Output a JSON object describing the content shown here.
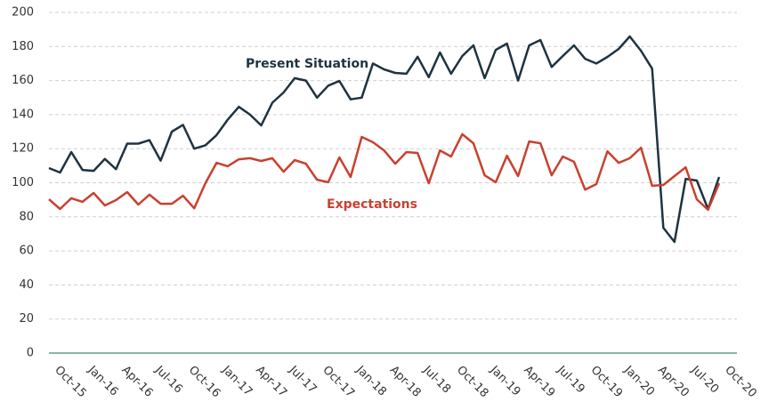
{
  "chart_data": {
    "type": "line",
    "categories": [
      null,
      "Oct-15",
      null,
      null,
      "Jan-16",
      null,
      null,
      "Apr-16",
      null,
      null,
      "Jul-16",
      null,
      null,
      "Oct-16",
      null,
      null,
      "Jan-17",
      null,
      null,
      "Apr-17",
      null,
      null,
      "Jul-17",
      null,
      null,
      "Oct-17",
      null,
      null,
      "Jan-18",
      null,
      null,
      "Apr-18",
      null,
      null,
      "Jul-18",
      null,
      null,
      "Oct-18",
      null,
      null,
      "Jan-19",
      null,
      null,
      "Apr-19",
      null,
      null,
      "Jul-19",
      null,
      null,
      "Oct-19",
      null,
      null,
      "Jan-20",
      null,
      null,
      "Apr-20",
      null,
      null,
      "Jul-20",
      null,
      null,
      "Oct-20"
    ],
    "series": [
      {
        "name": "Present Situation",
        "color": "#1e3340",
        "values": [
          108.6,
          106,
          118,
          107.5,
          107,
          114,
          108,
          123,
          123,
          125,
          113,
          130,
          134,
          120,
          122,
          128,
          137,
          144.6,
          140,
          133.7,
          147,
          153,
          161.4,
          160,
          150,
          157,
          159.8,
          149,
          150,
          170,
          166.6,
          164.5,
          164,
          174,
          162,
          176.5,
          164,
          174.4,
          180.7,
          161.4,
          178,
          181.7,
          160,
          180.7,
          183.8,
          168,
          174.4,
          180.7,
          172.8,
          170,
          173.9,
          178.6,
          185.9,
          177.5,
          167,
          73.6,
          65.3,
          102.3,
          101.3,
          84.6,
          103.4,
          null
        ]
      },
      {
        "name": "Expectations",
        "color": "#c8412f",
        "values": [
          90.3,
          84.6,
          90.9,
          88.8,
          94,
          86.7,
          89.8,
          94.5,
          87.2,
          93,
          87.7,
          87.7,
          92.4,
          85,
          99.7,
          111.7,
          109.7,
          113.8,
          114.4,
          112.8,
          114.4,
          106.5,
          113.3,
          111.2,
          101.8,
          100.3,
          114.9,
          103.4,
          126.9,
          123.8,
          119,
          111.2,
          118,
          117.5,
          99.7,
          119,
          115.4,
          128.5,
          123.2,
          104.4,
          100.3,
          115.9,
          103.9,
          124.3,
          123.2,
          104.4,
          115.4,
          112.3,
          96,
          99.2,
          118.5,
          111.7,
          114.4,
          120.6,
          98.2,
          98.7,
          103.9,
          109.1,
          90.3,
          84.1,
          99.7,
          null
        ]
      }
    ],
    "ylim": [
      0,
      200
    ],
    "yticks": [
      0,
      20,
      40,
      60,
      80,
      100,
      120,
      140,
      160,
      180,
      200
    ],
    "grid": true
  }
}
